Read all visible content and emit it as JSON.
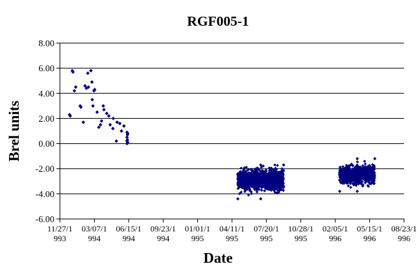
{
  "chart_data": {
    "type": "scatter",
    "title": "RGF005-1",
    "xlabel": "Date",
    "ylabel": "Brel units",
    "ylim": [
      -6,
      8
    ],
    "y_ticks": [
      "8.00",
      "6.00",
      "4.00",
      "2.00",
      "0.00",
      "-2.00",
      "-4.00",
      "-6.00"
    ],
    "xlim": [
      "1993-11-27",
      "1996-08-23"
    ],
    "x_ticks": [
      {
        "line1": "11/27/1",
        "line2": "993"
      },
      {
        "line1": "03/07/1",
        "line2": "994"
      },
      {
        "line1": "06/15/1",
        "line2": "994"
      },
      {
        "line1": "09/23/1",
        "line2": "994"
      },
      {
        "line1": "01/01/1",
        "line2": "995"
      },
      {
        "line1": "04/11/1",
        "line2": "995"
      },
      {
        "line1": "07/20/1",
        "line2": "995"
      },
      {
        "line1": "10/28/1",
        "line2": "995"
      },
      {
        "line1": "02/05/1",
        "line2": "996"
      },
      {
        "line1": "05/15/1",
        "line2": "996"
      },
      {
        "line1": "08/23/1",
        "line2": "996"
      }
    ],
    "grid": {
      "horizontal": true,
      "vertical": false
    },
    "legend": "none",
    "marker_color": "#000080",
    "points": [
      {
        "x": "1993-12-25",
        "y": 2.3
      },
      {
        "x": "1993-12-27",
        "y": 2.2
      },
      {
        "x": "1994-01-02",
        "y": 5.8
      },
      {
        "x": "1994-01-04",
        "y": 5.7
      },
      {
        "x": "1994-01-08",
        "y": 4.2
      },
      {
        "x": "1994-01-12",
        "y": 4.5
      },
      {
        "x": "1994-01-25",
        "y": 3.0
      },
      {
        "x": "1994-01-27",
        "y": 2.9
      },
      {
        "x": "1994-02-03",
        "y": 1.7
      },
      {
        "x": "1994-02-08",
        "y": 4.6
      },
      {
        "x": "1994-02-12",
        "y": 4.4
      },
      {
        "x": "1994-02-16",
        "y": 5.6
      },
      {
        "x": "1994-02-18",
        "y": 4.5
      },
      {
        "x": "1994-02-25",
        "y": 5.8
      },
      {
        "x": "1994-02-28",
        "y": 4.9
      },
      {
        "x": "1994-03-01",
        "y": 3.5
      },
      {
        "x": "1994-03-03",
        "y": 3.0
      },
      {
        "x": "1994-03-06",
        "y": 4.2
      },
      {
        "x": "1994-03-08",
        "y": 4.3
      },
      {
        "x": "1994-03-15",
        "y": 2.5
      },
      {
        "x": "1994-03-20",
        "y": 1.3
      },
      {
        "x": "1994-03-25",
        "y": 1.5
      },
      {
        "x": "1994-03-28",
        "y": 1.8
      },
      {
        "x": "1994-04-02",
        "y": 3.0
      },
      {
        "x": "1994-04-04",
        "y": 2.7
      },
      {
        "x": "1994-04-12",
        "y": 2.4
      },
      {
        "x": "1994-04-18",
        "y": 2.2
      },
      {
        "x": "1994-04-22",
        "y": 1.5
      },
      {
        "x": "1994-04-30",
        "y": 1.2
      },
      {
        "x": "1994-05-01",
        "y": 2.0
      },
      {
        "x": "1994-05-10",
        "y": 0.2
      },
      {
        "x": "1994-05-12",
        "y": 1.7
      },
      {
        "x": "1994-05-20",
        "y": 1.6
      },
      {
        "x": "1994-05-25",
        "y": 1.0
      },
      {
        "x": "1994-06-01",
        "y": 1.4
      },
      {
        "x": "1994-06-10",
        "y": 0.9
      },
      {
        "x": "1994-06-10",
        "y": 0.5
      },
      {
        "x": "1994-06-10",
        "y": 0.2
      },
      {
        "x": "1994-06-10",
        "y": 0.0
      },
      {
        "x": "1994-06-11",
        "y": 0.7
      },
      {
        "x": "1994-06-11",
        "y": 0.3
      },
      {
        "x": "1994-06-12",
        "y": 0.8
      },
      {
        "x": "1994-06-12",
        "y": 0.1
      }
    ],
    "clusters": [
      {
        "x_start": "1995-04-28",
        "x_end": "1995-09-08",
        "y_min": -4.4,
        "y_max": -1.7,
        "y_center": -2.9
      },
      {
        "x_start": "1996-02-18",
        "x_end": "1996-05-30",
        "y_min": -3.8,
        "y_max": -1.2,
        "y_center": -2.5
      }
    ]
  }
}
